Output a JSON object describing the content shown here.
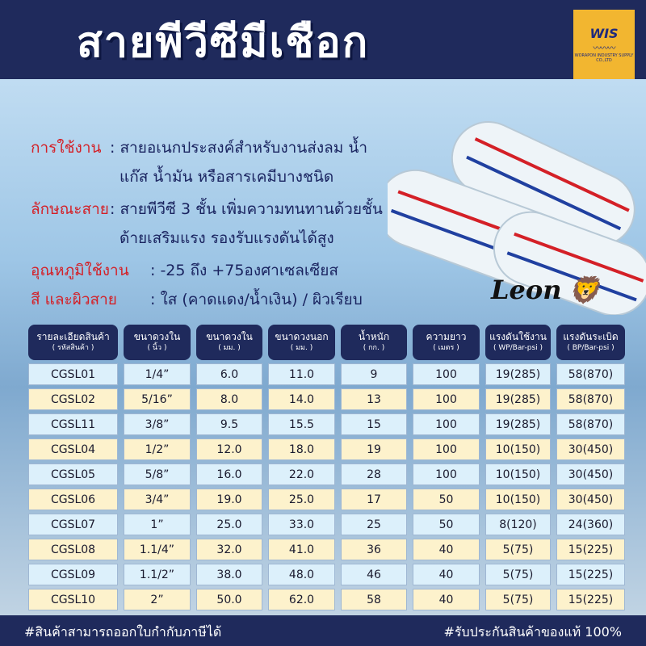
{
  "header": {
    "title": "สายพีวีซีมีเชือก",
    "logo_text": "WIS",
    "logo_subtext": "WORAPON INDUSTRY SUPPLY CO.,LTD"
  },
  "info": [
    {
      "label": "การใช้งาน",
      "lines": [
        ": สายอเนกประสงค์สำหรับงานส่งลม น้ำ",
        "แก๊ส น้ำมัน หรือสารเคมีบางชนิด"
      ]
    },
    {
      "label": "ลักษณะสาย",
      "lines": [
        ": สายพีวีซี 3 ชั้น เพิ่มความทนทานด้วยชั้น",
        "ด้ายเสริมแรง รองรับแรงดันได้สูง"
      ]
    },
    {
      "label": "อุณหภูมิใช้งาน",
      "lines": [
        ": -25 ถึง +75องศาเซลเซียส"
      ]
    },
    {
      "label": "สี และผิวสาย",
      "lines": [
        ": ใส (คาดแดง/น้ำเงิน) / ผิวเรียบ"
      ]
    }
  ],
  "brand": "Leon",
  "colors": {
    "navy": "#1f2a5c",
    "red_label": "#d42027",
    "row_blue": "#dcf0fb",
    "row_cream": "#fdf2cc"
  },
  "table": {
    "headers": [
      [
        "รายละเอียดสินค้า",
        "( รหัสสินค้า )"
      ],
      [
        "ขนาดวงใน",
        "( นิ้ว )"
      ],
      [
        "ขนาดวงใน",
        "( มม. )"
      ],
      [
        "ขนาดวงนอก",
        "( มม. )"
      ],
      [
        "น้ำหนัก",
        "( กก. )"
      ],
      [
        "ความยาว",
        "( เมตร )"
      ],
      [
        "แรงดันใช้งาน",
        "( WP/Bar-psi )"
      ],
      [
        "แรงดันระเบิด",
        "( BP/Bar-psi )"
      ]
    ],
    "rows": [
      [
        "CGSL01",
        "1/4”",
        "6.0",
        "11.0",
        "9",
        "100",
        "19(285)",
        "58(870)"
      ],
      [
        "CGSL02",
        "5/16”",
        "8.0",
        "14.0",
        "13",
        "100",
        "19(285)",
        "58(870)"
      ],
      [
        "CGSL11",
        "3/8”",
        "9.5",
        "15.5",
        "15",
        "100",
        "19(285)",
        "58(870)"
      ],
      [
        "CGSL04",
        "1/2”",
        "12.0",
        "18.0",
        "19",
        "100",
        "10(150)",
        "30(450)"
      ],
      [
        "CGSL05",
        "5/8”",
        "16.0",
        "22.0",
        "28",
        "100",
        "10(150)",
        "30(450)"
      ],
      [
        "CGSL06",
        "3/4”",
        "19.0",
        "25.0",
        "17",
        "50",
        "10(150)",
        "30(450)"
      ],
      [
        "CGSL07",
        "1”",
        "25.0",
        "33.0",
        "25",
        "50",
        "8(120)",
        "24(360)"
      ],
      [
        "CGSL08",
        "1.1/4”",
        "32.0",
        "41.0",
        "36",
        "40",
        "5(75)",
        "15(225)"
      ],
      [
        "CGSL09",
        "1.1/2”",
        "38.0",
        "48.0",
        "46",
        "40",
        "5(75)",
        "15(225)"
      ],
      [
        "CGSL10",
        "2”",
        "50.0",
        "62.0",
        "58",
        "40",
        "5(75)",
        "15(225)"
      ]
    ]
  },
  "footer": {
    "left": "#สินค้าสามารถออกใบกำกับภาษีได้",
    "right": "#รับประกันสินค้าของแท้ 100%"
  }
}
